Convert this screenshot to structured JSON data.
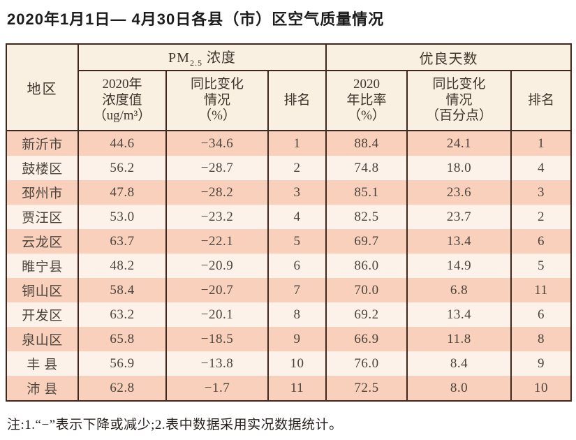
{
  "chart_data": {
    "type": "table",
    "title": "2020年1月1日— 4月30日各县（市）区空气质量情况",
    "header": {
      "region": "地区",
      "pm_group": {
        "prefix": "PM",
        "subscript": "2.5",
        "suffix": " 浓度"
      },
      "good_days_group": "优良天数",
      "subcolumns": [
        "2020年\n浓度值\n（ug/m³）",
        "同比变化\n情况\n（%）",
        "排名",
        "2020\n年比率\n（%）",
        "同比变化\n情况\n（百分点）",
        "排名"
      ]
    },
    "rows": [
      {
        "region": "新沂市",
        "values": [
          "44.6",
          "−34.6",
          "1",
          "88.4",
          "24.1",
          "1"
        ]
      },
      {
        "region": "鼓楼区",
        "values": [
          "56.2",
          "−28.7",
          "2",
          "74.8",
          "18.0",
          "4"
        ]
      },
      {
        "region": "邳州市",
        "values": [
          "47.8",
          "−28.2",
          "3",
          "85.1",
          "23.6",
          "3"
        ]
      },
      {
        "region": "贾汪区",
        "values": [
          "53.0",
          "−23.2",
          "4",
          "82.5",
          "23.7",
          "2"
        ]
      },
      {
        "region": "云龙区",
        "values": [
          "63.7",
          "−22.1",
          "5",
          "69.7",
          "13.4",
          "6"
        ]
      },
      {
        "region": "睢宁县",
        "values": [
          "48.2",
          "−20.9",
          "6",
          "86.0",
          "14.9",
          "5"
        ]
      },
      {
        "region": "铜山区",
        "values": [
          "58.4",
          "−20.7",
          "7",
          "70.0",
          "6.8",
          "11"
        ]
      },
      {
        "region": "开发区",
        "values": [
          "63.2",
          "−20.1",
          "8",
          "69.2",
          "13.4",
          "6"
        ]
      },
      {
        "region": "泉山区",
        "values": [
          "65.8",
          "−18.5",
          "9",
          "66.9",
          "11.8",
          "8"
        ]
      },
      {
        "region": "丰 县",
        "values": [
          "56.9",
          "−13.8",
          "10",
          "76.0",
          "8.4",
          "9"
        ]
      },
      {
        "region": "沛 县",
        "values": [
          "62.8",
          "−1.7",
          "11",
          "72.5",
          "8.0",
          "10"
        ]
      }
    ],
    "note": "注:1.“−”表示下降或减少;2.表中数据采用实况数据统计。"
  },
  "colors": {
    "row_shaded": "#f8d0bc",
    "row_light": "#fcf2ea",
    "header_bg": "#faf0e2",
    "grid": "#40271d"
  }
}
